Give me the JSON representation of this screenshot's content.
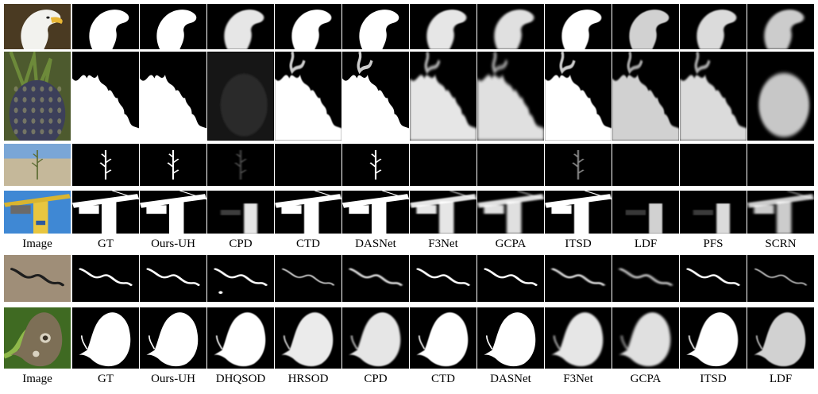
{
  "group_a": {
    "labels": [
      "Image",
      "GT",
      "Ours-UH",
      "CPD",
      "CTD",
      "DASNet",
      "F3Net",
      "GCPA",
      "ITSD",
      "LDF",
      "PFS",
      "SCRN"
    ],
    "rows": [
      "eagle",
      "pineapple",
      "plant",
      "crane"
    ]
  },
  "group_b": {
    "labels": [
      "Image",
      "GT",
      "Ours-UH",
      "DHQSOD",
      "HRSOD",
      "CPD",
      "CTD",
      "DASNet",
      "F3Net",
      "GCPA",
      "ITSD",
      "LDF"
    ],
    "rows": [
      "snake",
      "butterfly"
    ]
  }
}
